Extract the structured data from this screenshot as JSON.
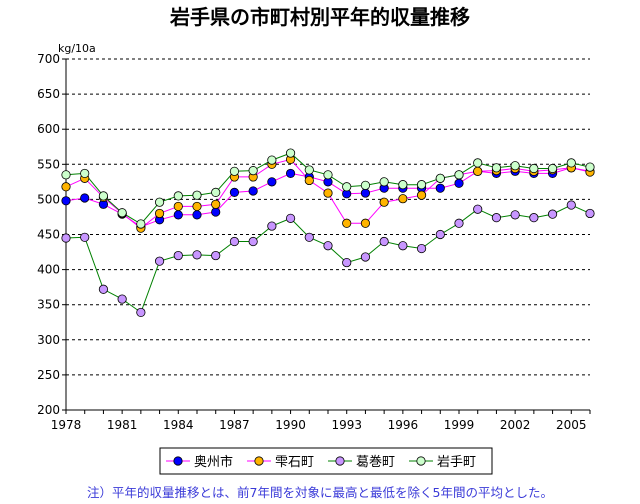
{
  "chart_data": {
    "type": "line",
    "title": "岩手県の市町村別平年的収量推移",
    "ylabel": "kg/10a",
    "ylim": [
      200,
      700
    ],
    "yticks": [
      200,
      250,
      300,
      350,
      400,
      450,
      500,
      550,
      600,
      650,
      700
    ],
    "xlim": [
      1978,
      2006
    ],
    "xtick_labels": [
      "1978",
      "1981",
      "1984",
      "1987",
      "1990",
      "1993",
      "1996",
      "1999",
      "2002",
      "2005"
    ],
    "x": [
      1978,
      1979,
      1980,
      1981,
      1982,
      1983,
      1984,
      1985,
      1986,
      1987,
      1988,
      1989,
      1990,
      1991,
      1992,
      1993,
      1994,
      1995,
      1996,
      1997,
      1998,
      1999,
      2000,
      2001,
      2002,
      2003,
      2004,
      2005,
      2006
    ],
    "series": [
      {
        "name": "奥州市",
        "color": "#ff00ff",
        "marker": "#0000ff",
        "values": [
          498,
          502,
          493,
          479,
          461,
          471,
          478,
          478,
          482,
          510,
          512,
          525,
          537,
          532,
          525,
          508,
          509,
          516,
          516,
          516,
          516,
          523,
          540,
          537,
          540,
          537,
          537,
          545,
          540
        ]
      },
      {
        "name": "雫石町",
        "color": "#ff00ff",
        "marker": "#ffb400",
        "values": [
          518,
          530,
          503,
          480,
          459,
          480,
          490,
          490,
          493,
          532,
          532,
          550,
          557,
          527,
          509,
          466,
          466,
          496,
          501,
          506,
          530,
          535,
          540,
          541,
          544,
          540,
          542,
          545,
          539
        ]
      },
      {
        "name": "葛巻町",
        "color": "#008000",
        "marker": "#c896ff",
        "values": [
          445,
          446,
          372,
          358,
          339,
          412,
          420,
          421,
          420,
          440,
          440,
          462,
          473,
          446,
          434,
          410,
          418,
          440,
          434,
          430,
          450,
          466,
          486,
          474,
          478,
          474,
          479,
          492,
          480
        ]
      },
      {
        "name": "岩手町",
        "color": "#008000",
        "marker": "#ccffcc",
        "values": [
          535,
          537,
          505,
          481,
          465,
          496,
          505,
          506,
          510,
          540,
          541,
          556,
          566,
          542,
          535,
          518,
          520,
          525,
          521,
          521,
          530,
          535,
          552,
          545,
          548,
          544,
          544,
          552,
          546
        ]
      }
    ],
    "legend_position": "bottom",
    "note": "注）平年的収量推移とは、前7年間を対象に最高と最低を除く5年間の平均とした。"
  }
}
